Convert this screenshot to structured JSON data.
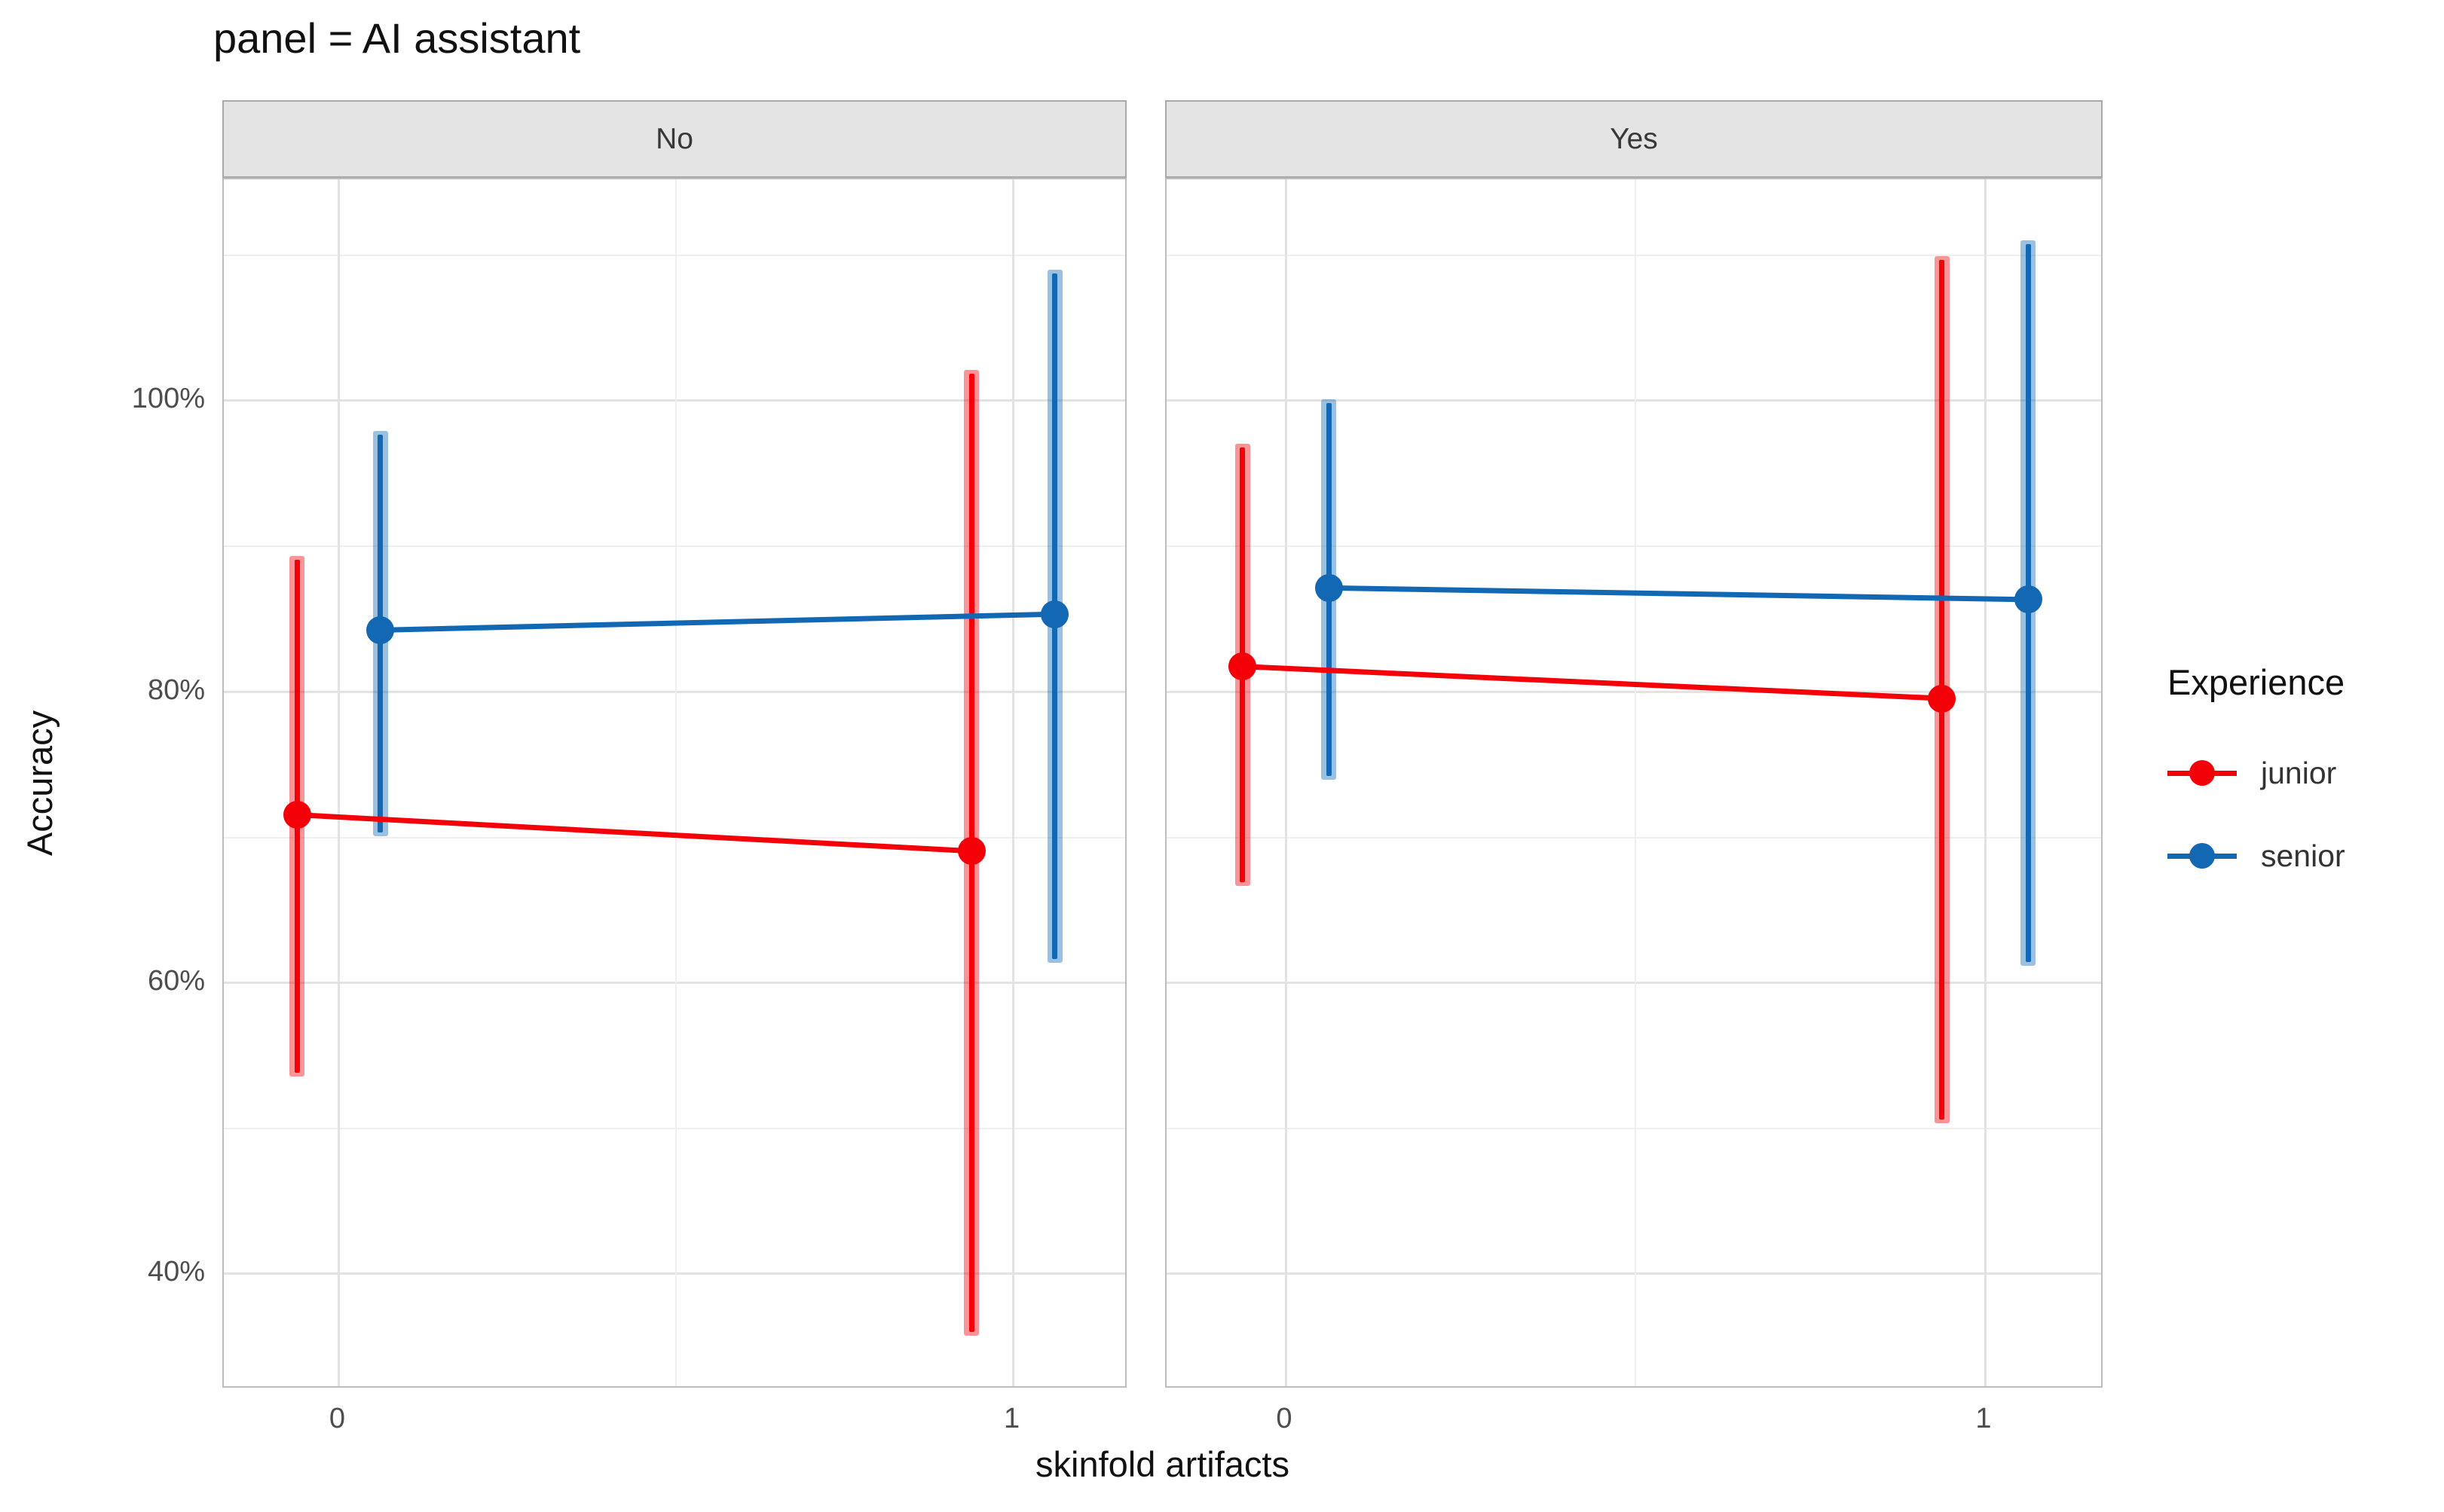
{
  "title": "panel = AI assistant",
  "axes": {
    "y_title": "Accuracy",
    "x_title": "skinfold artifacts",
    "y_tick_labels": [
      "100%",
      "80%",
      "60%",
      "40%"
    ],
    "x_tick_labels": [
      "0",
      "1"
    ]
  },
  "legend": {
    "title": "Experience",
    "entries": [
      {
        "label": "junior",
        "color": "#f40008"
      },
      {
        "label": "senior",
        "color": "#1268b3"
      }
    ]
  },
  "colors": {
    "junior": "#f40008",
    "senior": "#1268b3",
    "grid_major": "#e3e3e3",
    "grid_minor": "#efefef",
    "panel_border": "#bdbdbd",
    "strip_background": "#e4e4e4",
    "tick_label": "#4d4d4d"
  },
  "chart_data": {
    "type": "pointrange",
    "title": "panel = AI assistant",
    "xlabel": "skinfold artifacts",
    "ylabel": "Accuracy",
    "y_unit": "percent",
    "x_values": [
      0,
      1
    ],
    "y_major_ticks": [
      100,
      80,
      60,
      40
    ],
    "y_minor_gridlines": [
      110,
      90,
      70,
      50
    ],
    "x_minor_gridline": 0.5,
    "ylim_panel": [
      32.0,
      115.2
    ],
    "legend_title": "Experience",
    "legend_position": "right",
    "grid": true,
    "facet_variable": "AI assistant",
    "facets": [
      {
        "label": "No",
        "series": [
          {
            "name": "junior",
            "points": [
              {
                "x": 0,
                "mean": 71.5,
                "lo": 53.5,
                "hi": 89.3
              },
              {
                "x": 1,
                "mean": 69.0,
                "lo": 35.7,
                "hi": 102.1
              }
            ]
          },
          {
            "name": "senior",
            "points": [
              {
                "x": 0,
                "mean": 84.2,
                "lo": 70.0,
                "hi": 97.9
              },
              {
                "x": 1,
                "mean": 85.3,
                "lo": 61.3,
                "hi": 109.0
              }
            ]
          }
        ]
      },
      {
        "label": "Yes",
        "series": [
          {
            "name": "junior",
            "points": [
              {
                "x": 0,
                "mean": 81.7,
                "lo": 66.6,
                "hi": 97.0
              },
              {
                "x": 1,
                "mean": 79.5,
                "lo": 50.3,
                "hi": 109.9
              }
            ]
          },
          {
            "name": "senior",
            "points": [
              {
                "x": 0,
                "mean": 87.1,
                "lo": 73.9,
                "hi": 100.1
              },
              {
                "x": 1,
                "mean": 86.3,
                "lo": 61.1,
                "hi": 111.0
              }
            ]
          }
        ]
      }
    ]
  }
}
